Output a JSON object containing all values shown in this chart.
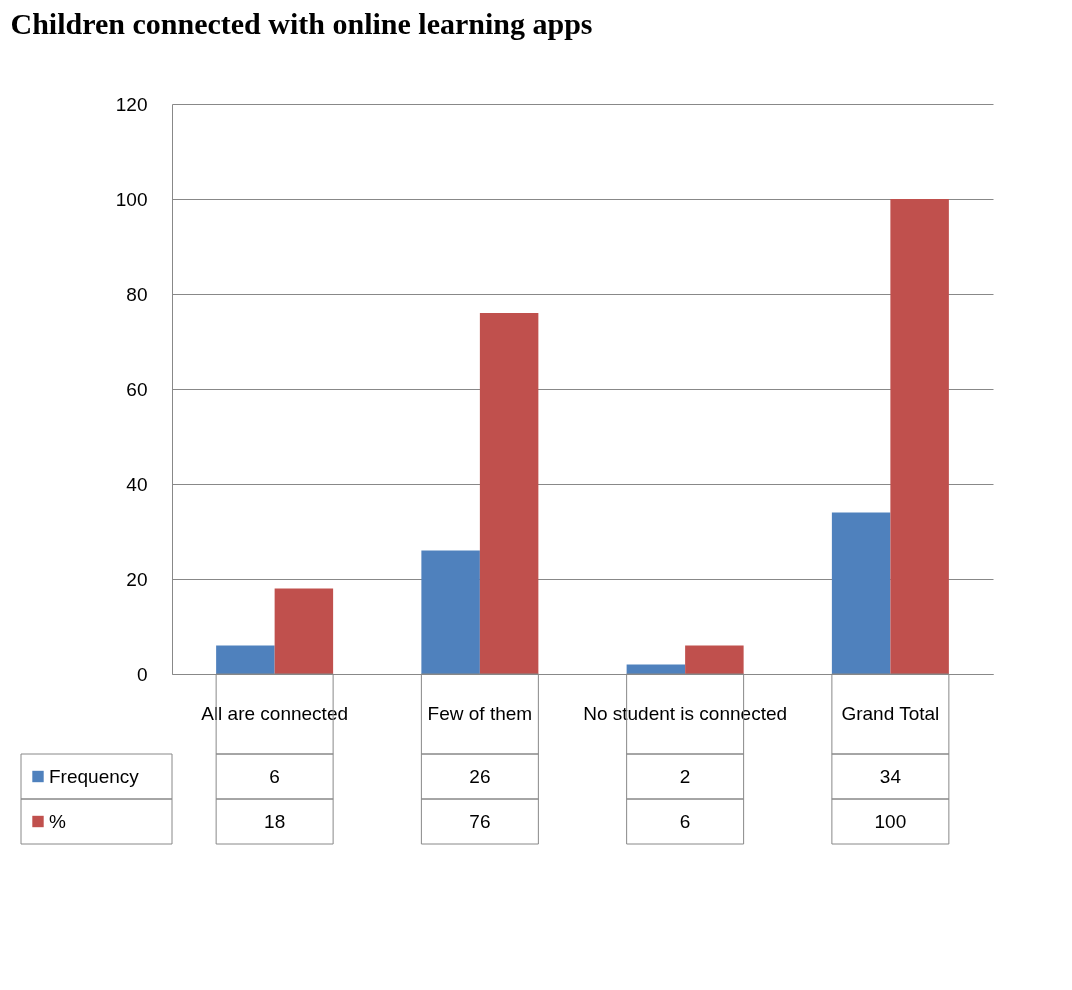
{
  "chart_data": {
    "type": "bar",
    "title": "Children connected with online learning apps",
    "categories": [
      "All are connected",
      "Few of them",
      "No student is connected",
      "Grand Total"
    ],
    "series": [
      {
        "name": "Frequency",
        "color": "#4f81bd",
        "values": [
          6,
          26,
          2,
          34
        ]
      },
      {
        "name": "%",
        "color": "#c0504d",
        "values": [
          18,
          76,
          6,
          100
        ]
      }
    ],
    "ylim": [
      0,
      120
    ],
    "yticks": [
      0,
      20,
      40,
      60,
      80,
      100,
      120
    ],
    "grid": "y",
    "legend": "bottom left",
    "data_labels": true
  }
}
